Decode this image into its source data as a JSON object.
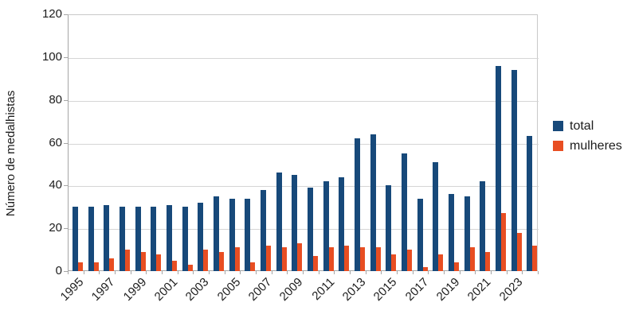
{
  "chart_data": {
    "type": "bar",
    "title": "",
    "ylabel": "Número de medalhistas",
    "xlabel": "",
    "categories": [
      "1995",
      "1996",
      "1997",
      "1998",
      "1999",
      "2000",
      "2001",
      "2002",
      "2003",
      "2004",
      "2005",
      "2006",
      "2007",
      "2008",
      "2009",
      "2010",
      "2011",
      "2012",
      "2013",
      "2014",
      "2015",
      "2016",
      "2017",
      "2018",
      "2019",
      "2020",
      "2021",
      "2022",
      "2023",
      "2024"
    ],
    "x_tick_labels": [
      "1995",
      "1997",
      "1999",
      "2001",
      "2003",
      "2005",
      "2007",
      "2009",
      "2011",
      "2013",
      "2015",
      "2017",
      "2019",
      "2021",
      "2023"
    ],
    "y_tick_labels": [
      "0",
      "20",
      "40",
      "60",
      "80",
      "100",
      "120"
    ],
    "ylim": [
      0,
      120
    ],
    "ytick_step": 20,
    "grid": "horizontal",
    "legend_position": "right",
    "series": [
      {
        "name": "total",
        "color": "#17497A",
        "values": [
          30,
          30,
          31,
          30,
          30,
          30,
          31,
          30,
          32,
          35,
          34,
          34,
          38,
          46,
          45,
          39,
          42,
          44,
          62,
          64,
          40,
          55,
          34,
          51,
          36,
          35,
          42,
          96,
          94,
          63
        ]
      },
      {
        "name": "mulheres",
        "color": "#E84E22",
        "values": [
          4,
          4,
          6,
          10,
          9,
          8,
          5,
          3,
          10,
          9,
          11,
          4,
          12,
          11,
          13,
          7,
          11,
          12,
          11,
          11,
          8,
          10,
          2,
          8,
          4,
          11,
          9,
          27,
          18,
          12
        ]
      }
    ],
    "colors": {
      "axis": "#a6a6a6",
      "grid": "#d5d5d5",
      "text": "#1c1c1c",
      "background": "#ffffff"
    }
  }
}
